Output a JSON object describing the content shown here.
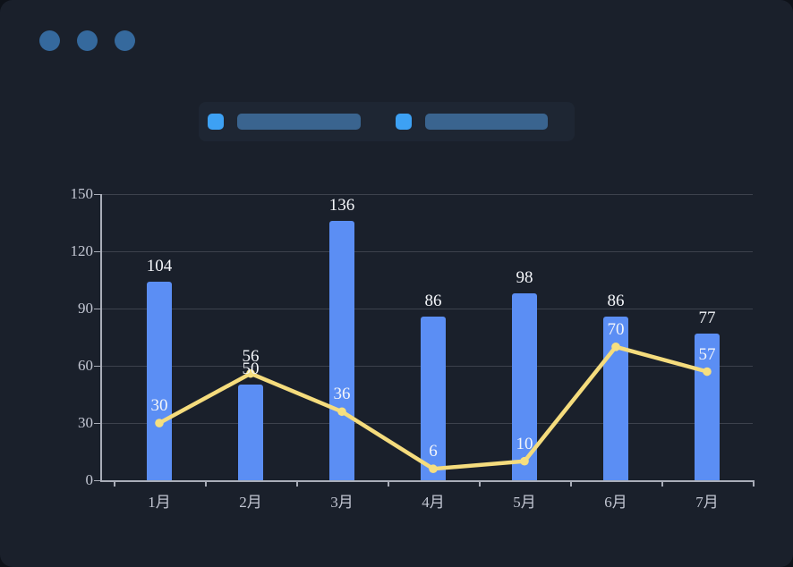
{
  "window": {
    "dot_color": "#35699d",
    "background": "#1a202b",
    "backdrop": "#0e1219",
    "dots": [
      "window-dot-1",
      "window-dot-2",
      "window-dot-3"
    ]
  },
  "legend": {
    "items": [
      {
        "name": "bar-series-legend",
        "swatch_color": "#3da1f4",
        "pill_color": "#3a648f",
        "pill_width": 138
      },
      {
        "name": "line-series-legend",
        "swatch_color": "#3da1f4",
        "pill_color": "#3a648f",
        "pill_width": 137
      }
    ]
  },
  "chart_data": {
    "type": "bar",
    "categories": [
      "1月",
      "2月",
      "3月",
      "4月",
      "5月",
      "6月",
      "7月"
    ],
    "series": [
      {
        "name": "bar-series",
        "type": "bar",
        "color": "#5b8ef4",
        "values": [
          104,
          50,
          136,
          86,
          98,
          86,
          77
        ]
      },
      {
        "name": "line-series",
        "type": "line",
        "color": "#f5dc7d",
        "values": [
          30,
          56,
          36,
          6,
          10,
          70,
          57
        ]
      }
    ],
    "value_labels_bar": [
      "104",
      "50",
      "136",
      "86",
      "98",
      "86",
      "77"
    ],
    "value_labels_line": [
      "30",
      "56",
      "36",
      "6",
      "10",
      "70",
      "57"
    ],
    "ylim": [
      0,
      150
    ],
    "yticks": [
      0,
      30,
      60,
      90,
      120,
      150
    ],
    "ytick_labels": [
      "0",
      "30",
      "60",
      "90",
      "120",
      "150"
    ],
    "grid": true,
    "legend_position": "top",
    "title": "",
    "xlabel": "",
    "ylabel": "",
    "colors": {
      "value_label": "#f4f6fa",
      "axis_text": "#c2c6d2",
      "gridline": "#3d424d",
      "axis_line": "#a9adb8",
      "marker": "#f6df80"
    }
  }
}
